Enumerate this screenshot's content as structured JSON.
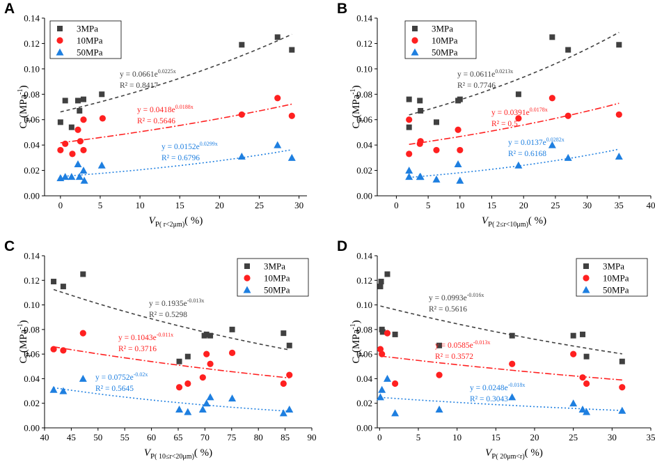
{
  "figure": {
    "panels_order": [
      "A",
      "B",
      "C",
      "D"
    ]
  },
  "chart_data": [
    {
      "panel": "A",
      "type": "scatter",
      "title": "",
      "ylabel": {
        "main": "C",
        "sub": "p",
        "unit": "(MPa",
        "sup": "-1",
        "close": ")"
      },
      "xlabel": {
        "main": "V",
        "sub": "P",
        "range": "( r<2μm)",
        "unit": "( %)"
      },
      "xlim": [
        -2,
        31
      ],
      "ylim": [
        0,
        0.14
      ],
      "xticks": [
        0,
        5,
        10,
        15,
        20,
        25,
        30
      ],
      "xtick_labels": [
        "0",
        "5",
        "10",
        "15",
        "20",
        "25",
        "30"
      ],
      "yticks": [
        0,
        0.02,
        0.04,
        0.06,
        0.08,
        0.1,
        0.12,
        0.14
      ],
      "ytick_labels": [
        "0.00",
        "0.02",
        "0.04",
        "0.06",
        "0.08",
        "0.10",
        "0.12",
        "0.14"
      ],
      "legend": {
        "position": "top-left",
        "entries": [
          "3MPa",
          "10MPa",
          "50MPa"
        ]
      },
      "series": [
        {
          "name": "3MPa",
          "color": "#404040",
          "marker": "square",
          "points": [
            [
              0,
              0.058
            ],
            [
              0.6,
              0.075
            ],
            [
              1.4,
              0.054
            ],
            [
              2.2,
              0.075
            ],
            [
              2.4,
              0.067
            ],
            [
              2.9,
              0.076
            ],
            [
              5.2,
              0.08
            ],
            [
              22.8,
              0.119
            ],
            [
              27.3,
              0.125
            ],
            [
              29.1,
              0.115
            ]
          ],
          "fit": {
            "a": 0.0661,
            "b": 0.0225,
            "dash": "5,4",
            "color": "#404040",
            "eq": "y = 0.0661e",
            "exp": "0.0225x",
            "r2": "R² = 0.8417"
          }
        },
        {
          "name": "10MPa",
          "color": "#ff2020",
          "marker": "circle",
          "points": [
            [
              0,
              0.036
            ],
            [
              0.6,
              0.041
            ],
            [
              1.5,
              0.033
            ],
            [
              2.2,
              0.052
            ],
            [
              2.5,
              0.043
            ],
            [
              2.9,
              0.06
            ],
            [
              2.9,
              0.036
            ],
            [
              5.3,
              0.061
            ],
            [
              22.8,
              0.064
            ],
            [
              27.3,
              0.077
            ],
            [
              29.1,
              0.063
            ]
          ],
          "fit": {
            "a": 0.0418,
            "b": 0.0188,
            "dash": "9,3,2,3",
            "color": "#ff2020",
            "eq": "y = 0.0418e",
            "exp": "0.0188x",
            "r2": "R² = 0.5646"
          }
        },
        {
          "name": "50MPa",
          "color": "#1e7fe0",
          "marker": "triangle",
          "points": [
            [
              0,
              0.014
            ],
            [
              0.6,
              0.015
            ],
            [
              1.4,
              0.015
            ],
            [
              2.2,
              0.025
            ],
            [
              2.4,
              0.015
            ],
            [
              2.9,
              0.02
            ],
            [
              3.0,
              0.012
            ],
            [
              5.2,
              0.024
            ],
            [
              22.8,
              0.031
            ],
            [
              27.3,
              0.04
            ],
            [
              29.1,
              0.03
            ]
          ],
          "fit": {
            "a": 0.0152,
            "b": 0.0299,
            "dash": "2,3",
            "color": "#1e7fe0",
            "eq": "y = 0.0152e",
            "exp": "0.0299x",
            "r2": "R² = 0.6796"
          }
        }
      ]
    },
    {
      "panel": "B",
      "type": "scatter",
      "title": "",
      "ylabel": {
        "main": "C",
        "sub": "p",
        "unit": "(MPa",
        "sup": "-1",
        "close": ")"
      },
      "xlabel": {
        "main": "V",
        "sub": "P",
        "range": "( 2≤r<10μm)",
        "unit": "( %)"
      },
      "xlim": [
        -3,
        40
      ],
      "ylim": [
        0,
        0.14
      ],
      "xticks": [
        0,
        5,
        10,
        15,
        20,
        25,
        30,
        35,
        40
      ],
      "xtick_labels": [
        "0",
        "5",
        "10",
        "15",
        "20",
        "25",
        "30",
        "35",
        "40"
      ],
      "yticks": [
        0,
        0.02,
        0.04,
        0.06,
        0.08,
        0.1,
        0.12,
        0.14
      ],
      "ytick_labels": [
        "0.00",
        "0.02",
        "0.04",
        "0.06",
        "0.08",
        "0.10",
        "0.12",
        "0.14"
      ],
      "legend": {
        "position": "top-left",
        "entries": [
          "3MPa",
          "10MPa",
          "50MPa"
        ]
      },
      "series": [
        {
          "name": "3MPa",
          "color": "#404040",
          "marker": "square",
          "points": [
            [
              2.0,
              0.076
            ],
            [
              2.0,
              0.054
            ],
            [
              3.7,
              0.075
            ],
            [
              3.8,
              0.067
            ],
            [
              6.3,
              0.058
            ],
            [
              9.7,
              0.075
            ],
            [
              10.0,
              0.076
            ],
            [
              19.2,
              0.08
            ],
            [
              24.5,
              0.125
            ],
            [
              27.0,
              0.115
            ],
            [
              35.0,
              0.119
            ]
          ],
          "fit": {
            "a": 0.0611,
            "b": 0.0213,
            "dash": "5,4",
            "color": "#404040",
            "eq": "y = 0.0611e",
            "exp": "0.0213x",
            "r2": "R² = 0.7746"
          }
        },
        {
          "name": "10MPa",
          "color": "#ff2020",
          "marker": "circle",
          "points": [
            [
              2.0,
              0.06
            ],
            [
              2.0,
              0.033
            ],
            [
              3.7,
              0.041
            ],
            [
              3.8,
              0.043
            ],
            [
              6.3,
              0.036
            ],
            [
              9.7,
              0.052
            ],
            [
              10.0,
              0.036
            ],
            [
              19.2,
              0.061
            ],
            [
              24.5,
              0.077
            ],
            [
              27.0,
              0.063
            ],
            [
              35.0,
              0.064
            ]
          ],
          "fit": {
            "a": 0.0391,
            "b": 0.0178,
            "dash": "9,3,2,3",
            "color": "#ff2020",
            "eq": "y = 0.0391e",
            "exp": "0.0178x",
            "r2": "R² = 0.5"
          }
        },
        {
          "name": "50MPa",
          "color": "#1e7fe0",
          "marker": "triangle",
          "points": [
            [
              2.0,
              0.02
            ],
            [
              2.0,
              0.015
            ],
            [
              3.7,
              0.015
            ],
            [
              3.8,
              0.015
            ],
            [
              6.3,
              0.013
            ],
            [
              9.7,
              0.025
            ],
            [
              10.0,
              0.012
            ],
            [
              19.2,
              0.024
            ],
            [
              24.5,
              0.04
            ],
            [
              27.0,
              0.03
            ],
            [
              35.0,
              0.031
            ]
          ],
          "fit": {
            "a": 0.0137,
            "b": 0.0282,
            "dash": "2,3",
            "color": "#1e7fe0",
            "eq": "y = 0.0137e",
            "exp": "0.0282x",
            "r2": "R² = 0.6168"
          }
        }
      ]
    },
    {
      "panel": "C",
      "type": "scatter",
      "title": "",
      "ylabel": {
        "main": "C",
        "sub": "p",
        "unit": "(MPa",
        "sup": "-1",
        "close": ")"
      },
      "xlabel": {
        "main": "V",
        "sub": "P",
        "range": "( 10≤r<20μm)",
        "unit": "( %)"
      },
      "xlim": [
        40,
        90
      ],
      "ylim": [
        0,
        0.14
      ],
      "xticks": [
        40,
        45,
        50,
        55,
        60,
        65,
        70,
        75,
        80,
        85,
        90
      ],
      "xtick_labels": [
        "40",
        "45",
        "50",
        "55",
        "60",
        "65",
        "70",
        "75",
        "80",
        "85",
        "90"
      ],
      "yticks": [
        0,
        0.02,
        0.04,
        0.06,
        0.08,
        0.1,
        0.12,
        0.14
      ],
      "ytick_labels": [
        "0.00",
        "0.02",
        "0.04",
        "0.06",
        "0.08",
        "0.10",
        "0.12",
        "0.14"
      ],
      "legend": {
        "position": "top-right",
        "entries": [
          "3MPa",
          "10MPa",
          "50MPa"
        ]
      },
      "series": [
        {
          "name": "3MPa",
          "color": "#404040",
          "marker": "square",
          "points": [
            [
              41.7,
              0.119
            ],
            [
              43.5,
              0.115
            ],
            [
              47.2,
              0.125
            ],
            [
              65.2,
              0.054
            ],
            [
              66.8,
              0.058
            ],
            [
              69.9,
              0.075
            ],
            [
              70.3,
              0.076
            ],
            [
              71.0,
              0.075
            ],
            [
              75.1,
              0.08
            ],
            [
              84.7,
              0.077
            ],
            [
              85.8,
              0.067
            ]
          ],
          "fit": {
            "a": 0.1935,
            "b": -0.013,
            "dash": "5,4",
            "color": "#404040",
            "eq": "y = 0.1935e",
            "exp": "-0.013x",
            "r2": "R² = 0.5298"
          }
        },
        {
          "name": "10MPa",
          "color": "#ff2020",
          "marker": "circle",
          "points": [
            [
              41.7,
              0.064
            ],
            [
              43.5,
              0.063
            ],
            [
              47.2,
              0.077
            ],
            [
              65.2,
              0.033
            ],
            [
              66.8,
              0.036
            ],
            [
              69.6,
              0.041
            ],
            [
              70.3,
              0.06
            ],
            [
              71.0,
              0.052
            ],
            [
              75.1,
              0.061
            ],
            [
              84.7,
              0.036
            ],
            [
              85.8,
              0.043
            ]
          ],
          "fit": {
            "a": 0.1043,
            "b": -0.011,
            "dash": "9,3,2,3",
            "color": "#ff2020",
            "eq": "y = 0.1043e",
            "exp": "-0.011x",
            "r2": "R² = 0.3716"
          }
        },
        {
          "name": "50MPa",
          "color": "#1e7fe0",
          "marker": "triangle",
          "points": [
            [
              41.7,
              0.031
            ],
            [
              43.5,
              0.03
            ],
            [
              47.2,
              0.04
            ],
            [
              65.2,
              0.015
            ],
            [
              66.8,
              0.013
            ],
            [
              69.6,
              0.015
            ],
            [
              70.3,
              0.02
            ],
            [
              71.0,
              0.025
            ],
            [
              75.1,
              0.024
            ],
            [
              84.7,
              0.012
            ],
            [
              85.8,
              0.015
            ]
          ],
          "fit": {
            "a": 0.0752,
            "b": -0.02,
            "dash": "2,3",
            "color": "#1e7fe0",
            "eq": "y = 0.0752e",
            "exp": "-0.02x",
            "r2": "R² = 0.5645"
          }
        }
      ]
    },
    {
      "panel": "D",
      "type": "scatter",
      "title": "",
      "ylabel": {
        "main": "C",
        "sub": "p",
        "unit": "(MPa",
        "sup": "-1",
        "close": ")"
      },
      "xlabel": {
        "main": "V",
        "sub": "P",
        "range": "( 20μm<r)",
        "unit": "( %)"
      },
      "xlim": [
        -0.3,
        35
      ],
      "ylim": [
        0,
        0.14
      ],
      "xticks": [
        0,
        5,
        10,
        15,
        20,
        25,
        30,
        35
      ],
      "xtick_labels": [
        "0",
        "5",
        "10",
        "15",
        "20",
        "25",
        "30",
        "35"
      ],
      "yticks": [
        0,
        0.02,
        0.04,
        0.06,
        0.08,
        0.1,
        0.12,
        0.14
      ],
      "ytick_labels": [
        "0.00",
        "0.02",
        "0.04",
        "0.06",
        "0.08",
        "0.10",
        "0.12",
        "0.14"
      ],
      "legend": {
        "position": "top-right",
        "entries": [
          "3MPa",
          "10MPa",
          "50MPa"
        ]
      },
      "series": [
        {
          "name": "3MPa",
          "color": "#404040",
          "marker": "square",
          "points": [
            [
              0.1,
              0.115
            ],
            [
              0.2,
              0.119
            ],
            [
              0.3,
              0.08
            ],
            [
              0.4,
              0.078
            ],
            [
              1.0,
              0.125
            ],
            [
              2.0,
              0.076
            ],
            [
              7.7,
              0.067
            ],
            [
              17.1,
              0.075
            ],
            [
              25.0,
              0.075
            ],
            [
              26.2,
              0.076
            ],
            [
              26.7,
              0.058
            ],
            [
              31.3,
              0.054
            ]
          ],
          "fit": {
            "a": 0.0993,
            "b": -0.016,
            "dash": "5,4",
            "color": "#404040",
            "eq": "y = 0.0993e",
            "exp": "-0.016x",
            "r2": "R² = 0.5616"
          }
        },
        {
          "name": "10MPa",
          "color": "#ff2020",
          "marker": "circle",
          "points": [
            [
              0.1,
              0.064
            ],
            [
              0.3,
              0.06
            ],
            [
              1.0,
              0.077
            ],
            [
              2.0,
              0.036
            ],
            [
              7.7,
              0.043
            ],
            [
              17.1,
              0.052
            ],
            [
              25.0,
              0.06
            ],
            [
              26.2,
              0.041
            ],
            [
              26.7,
              0.036
            ],
            [
              31.3,
              0.033
            ]
          ],
          "fit": {
            "a": 0.0585,
            "b": -0.013,
            "dash": "9,3,2,3",
            "color": "#ff2020",
            "eq": "y = 0.0585e",
            "exp": "-0.013x",
            "r2": "R² = 0.3572"
          }
        },
        {
          "name": "50MPa",
          "color": "#1e7fe0",
          "marker": "triangle",
          "points": [
            [
              0.1,
              0.025
            ],
            [
              0.3,
              0.031
            ],
            [
              1.0,
              0.04
            ],
            [
              2.0,
              0.012
            ],
            [
              7.7,
              0.015
            ],
            [
              17.1,
              0.025
            ],
            [
              25.0,
              0.02
            ],
            [
              26.2,
              0.015
            ],
            [
              26.7,
              0.013
            ],
            [
              31.3,
              0.014
            ]
          ],
          "fit": {
            "a": 0.0248,
            "b": -0.018,
            "dash": "2,3",
            "color": "#1e7fe0",
            "eq": "y = 0.0248e",
            "exp": "-0.018x",
            "r2": "R² = 0.3043"
          }
        }
      ]
    }
  ]
}
